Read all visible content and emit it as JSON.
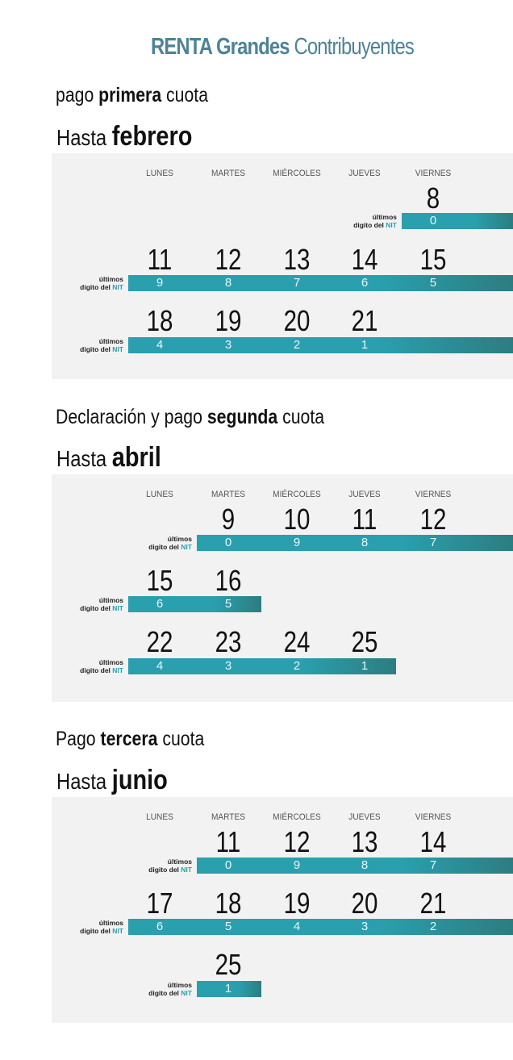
{
  "title": {
    "bold": "RENTA Grandes",
    "rest": "Contribuyentes"
  },
  "weekdays": [
    "LUNES",
    "MARTES",
    "MIÉRCOLES",
    "JUEVES",
    "VIERNES"
  ],
  "nit_label": {
    "line1": "últimos",
    "line2": "digito del",
    "nit": "NIT"
  },
  "sections": [
    {
      "heading_pre": "pago ",
      "heading_bold": "primera",
      "heading_post": " cuota",
      "month_pre": "Hasta ",
      "month": "febrero",
      "rows": [
        {
          "days": [
            "",
            "",
            "",
            "",
            "8"
          ],
          "digits": [
            "",
            "",
            "",
            "",
            "0"
          ]
        },
        {
          "days": [
            "11",
            "12",
            "13",
            "14",
            "15"
          ],
          "digits": [
            "9",
            "8",
            "7",
            "6",
            "5"
          ]
        },
        {
          "days": [
            "18",
            "19",
            "20",
            "21",
            ""
          ],
          "digits": [
            "4",
            "3",
            "2",
            "1",
            ""
          ]
        }
      ]
    },
    {
      "heading_pre": "Declaración y pago ",
      "heading_bold": "segunda",
      "heading_post": " cuota",
      "month_pre": "Hasta ",
      "month": "abril",
      "rows": [
        {
          "days": [
            "",
            "9",
            "10",
            "11",
            "12"
          ],
          "digits": [
            "",
            "0",
            "9",
            "8",
            "7"
          ]
        },
        {
          "days": [
            "15",
            "16",
            "",
            "",
            ""
          ],
          "digits": [
            "6",
            "5",
            "",
            "",
            ""
          ]
        },
        {
          "days": [
            "22",
            "23",
            "24",
            "25",
            ""
          ],
          "digits": [
            "4",
            "3",
            "2",
            "1",
            ""
          ]
        }
      ]
    },
    {
      "heading_pre": "Pago ",
      "heading_bold": "tercera",
      "heading_post": " cuota",
      "month_pre": "Hasta ",
      "month": "junio",
      "rows": [
        {
          "days": [
            "",
            "11",
            "12",
            "13",
            "14"
          ],
          "digits": [
            "",
            "0",
            "9",
            "8",
            "7"
          ]
        },
        {
          "days": [
            "17",
            "18",
            "19",
            "20",
            "21"
          ],
          "digits": [
            "6",
            "5",
            "4",
            "3",
            "2"
          ]
        },
        {
          "days": [
            "",
            "25",
            "",
            "",
            ""
          ],
          "digits": [
            "",
            "1",
            "",
            "",
            ""
          ]
        }
      ]
    }
  ]
}
